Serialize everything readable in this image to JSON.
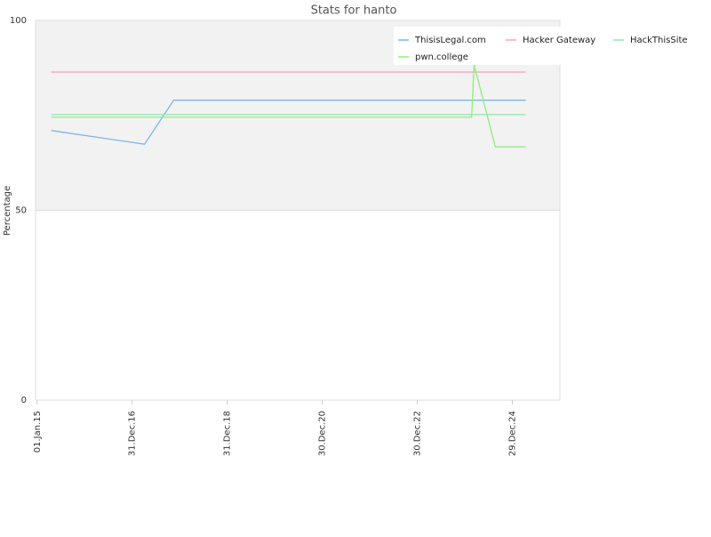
{
  "chart_data": {
    "type": "line",
    "title": "Stats for hanto",
    "y_label": "Percentage",
    "xlim": [
      "2014-12-20",
      "2025-12-29"
    ],
    "xticks": [
      {
        "value": "2015-01-01",
        "label": "01.Jan.15"
      },
      {
        "value": "2016-12-31",
        "label": "31.Dec.16"
      },
      {
        "value": "2018-12-31",
        "label": "31.Dec.18"
      },
      {
        "value": "2020-12-30",
        "label": "30.Dec.20"
      },
      {
        "value": "2022-12-30",
        "label": "30.Dec.22"
      },
      {
        "value": "2024-12-29",
        "label": "29.Dec.24"
      }
    ],
    "ylim": [
      0,
      100
    ],
    "yticks": [
      0,
      50,
      100
    ],
    "grid": true,
    "plot_band": {
      "from": 50,
      "to": 100,
      "color": "#f2f2f2"
    },
    "legend": "top-right",
    "series": [
      {
        "name": "ThisisLegal.com",
        "color": "#7cb5ec",
        "x": [
          "2015-04-20",
          "2017-04-05",
          "2017-11-15",
          "2025-04-10"
        ],
        "values": [
          71,
          67.4,
          79,
          79
        ]
      },
      {
        "name": "Hacker Gateway",
        "color": "#f4a5c0",
        "x": [
          "2015-04-20",
          "2025-04-10"
        ],
        "values": [
          86.4,
          86.4
        ]
      },
      {
        "name": "HackThisSite",
        "color": "#8ee6b0",
        "x": [
          "2015-04-20",
          "2025-04-10"
        ],
        "values": [
          75.2,
          75.2
        ]
      },
      {
        "name": "pwn.college",
        "color": "#90ed7d",
        "x": [
          "2015-04-20",
          "2024-02-20",
          "2024-03-10",
          "2024-08-20",
          "2025-04-10"
        ],
        "values": [
          74.5,
          74.5,
          88.3,
          66.7,
          66.7
        ]
      }
    ]
  }
}
